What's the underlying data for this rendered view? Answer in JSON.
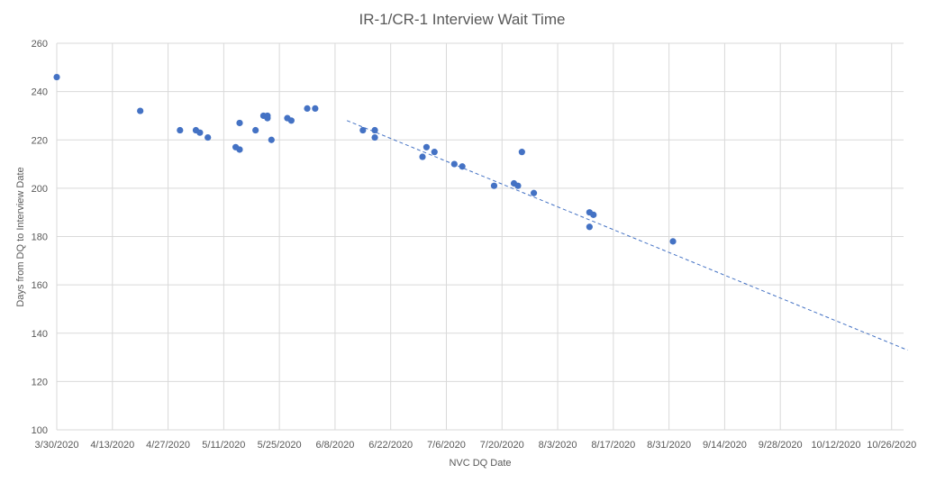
{
  "chart_data": {
    "type": "scatter",
    "title": "IR-1/CR-1 Interview Wait Time",
    "xlabel": "NVC DQ Date",
    "ylabel": "Days from DQ to Interview Date",
    "xlim": [
      "3/30/2020",
      "10/29/2020"
    ],
    "ylim": [
      100,
      260
    ],
    "y_ticks": [
      100,
      120,
      140,
      160,
      180,
      200,
      220,
      240,
      260
    ],
    "x_ticks": [
      "3/30/2020",
      "4/13/2020",
      "4/27/2020",
      "5/11/2020",
      "5/25/2020",
      "6/8/2020",
      "6/22/2020",
      "7/6/2020",
      "7/20/2020",
      "8/3/2020",
      "8/17/2020",
      "8/31/2020",
      "9/14/2020",
      "9/28/2020",
      "10/12/2020",
      "10/26/2020"
    ],
    "grid": true,
    "marker_color": "#4472c4",
    "series": [
      {
        "values": [
          {
            "x": "3/30/2020",
            "y": 246
          },
          {
            "x": "4/20/2020",
            "y": 232
          },
          {
            "x": "4/30/2020",
            "y": 224
          },
          {
            "x": "5/4/2020",
            "y": 224
          },
          {
            "x": "5/5/2020",
            "y": 223
          },
          {
            "x": "5/7/2020",
            "y": 221
          },
          {
            "x": "5/14/2020",
            "y": 217
          },
          {
            "x": "5/15/2020",
            "y": 216
          },
          {
            "x": "5/15/2020",
            "y": 227
          },
          {
            "x": "5/19/2020",
            "y": 224
          },
          {
            "x": "5/21/2020",
            "y": 230
          },
          {
            "x": "5/22/2020",
            "y": 230
          },
          {
            "x": "5/22/2020",
            "y": 229
          },
          {
            "x": "5/23/2020",
            "y": 220
          },
          {
            "x": "5/27/2020",
            "y": 229
          },
          {
            "x": "5/28/2020",
            "y": 228
          },
          {
            "x": "6/1/2020",
            "y": 233
          },
          {
            "x": "6/3/2020",
            "y": 233
          },
          {
            "x": "6/15/2020",
            "y": 224
          },
          {
            "x": "6/18/2020",
            "y": 224
          },
          {
            "x": "6/18/2020",
            "y": 221
          },
          {
            "x": "6/30/2020",
            "y": 213
          },
          {
            "x": "7/1/2020",
            "y": 217
          },
          {
            "x": "7/3/2020",
            "y": 215
          },
          {
            "x": "7/8/2020",
            "y": 210
          },
          {
            "x": "7/10/2020",
            "y": 209
          },
          {
            "x": "7/18/2020",
            "y": 201
          },
          {
            "x": "7/23/2020",
            "y": 202
          },
          {
            "x": "7/24/2020",
            "y": 201
          },
          {
            "x": "7/25/2020",
            "y": 215
          },
          {
            "x": "7/28/2020",
            "y": 198
          },
          {
            "x": "8/11/2020",
            "y": 190
          },
          {
            "x": "8/11/2020",
            "y": 184
          },
          {
            "x": "8/12/2020",
            "y": 189
          },
          {
            "x": "9/1/2020",
            "y": 178
          }
        ]
      }
    ],
    "trendline": {
      "style": "dashed",
      "from": {
        "x": "6/11/2020",
        "y": 228
      },
      "to": {
        "x": "10/30/2020",
        "y": 133
      }
    }
  }
}
